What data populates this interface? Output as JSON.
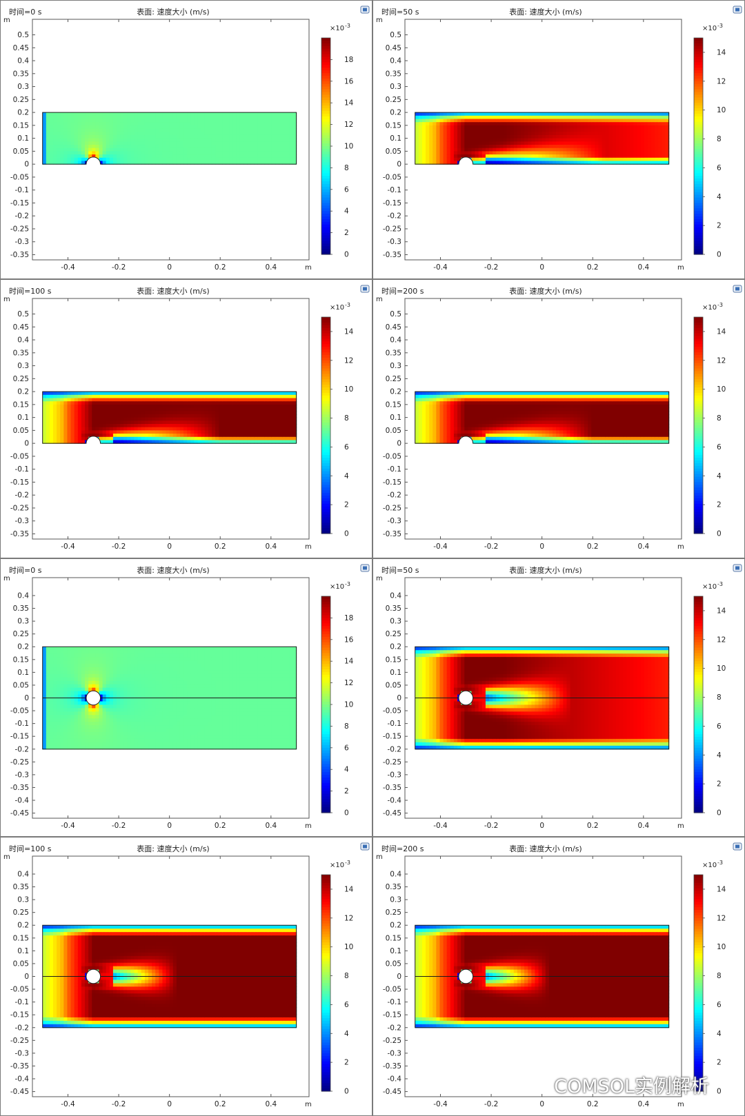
{
  "figure": {
    "watermark": "COMSOL实例解析",
    "colormap": "jet",
    "color_low": "#00007f",
    "color_high": "#7f0000",
    "mid_color": "#80ff80"
  },
  "chart_data": [
    {
      "type": "heatmap",
      "time_label": "时间=0 s",
      "title": "表面: 速度大小 (m/s)",
      "axis_unit": "m",
      "xticks": [
        -0.4,
        -0.2,
        0,
        0.2,
        0.4
      ],
      "yticks": [
        0.5,
        0.45,
        0.4,
        0.35,
        0.3,
        0.25,
        0.2,
        0.15,
        0.1,
        0.05,
        0,
        -0.05,
        -0.1,
        -0.15,
        -0.2,
        -0.25,
        -0.3,
        -0.35
      ],
      "xlim": [
        -0.54,
        0.55
      ],
      "ylim": [
        -0.37,
        0.56
      ],
      "domain": {
        "x": [
          -0.5,
          0.5
        ],
        "y": [
          0,
          0.2
        ]
      },
      "cylinder": {
        "cx": -0.3,
        "cy": 0,
        "r": 0.028
      },
      "flow": "initial",
      "colorbar": {
        "exponent": "×10",
        "sup": "-3",
        "min": 0,
        "max": 20,
        "ticks": [
          0,
          2,
          4,
          6,
          8,
          10,
          12,
          14,
          16,
          18
        ]
      }
    },
    {
      "type": "heatmap",
      "time_label": "时间=50 s",
      "title": "表面: 速度大小 (m/s)",
      "axis_unit": "m",
      "xticks": [
        -0.4,
        -0.2,
        0,
        0.2,
        0.4
      ],
      "yticks": [
        0.5,
        0.45,
        0.4,
        0.35,
        0.3,
        0.25,
        0.2,
        0.15,
        0.1,
        0.05,
        0,
        -0.05,
        -0.1,
        -0.15,
        -0.2,
        -0.25,
        -0.3,
        -0.35
      ],
      "xlim": [
        -0.54,
        0.55
      ],
      "ylim": [
        -0.37,
        0.56
      ],
      "domain": {
        "x": [
          -0.5,
          0.5
        ],
        "y": [
          0,
          0.2
        ]
      },
      "cylinder": {
        "cx": -0.3,
        "cy": 0,
        "r": 0.028
      },
      "flow": "developing",
      "colorbar": {
        "exponent": "×10",
        "sup": "-3",
        "min": 0,
        "max": 15,
        "ticks": [
          0,
          2,
          4,
          6,
          8,
          10,
          12,
          14
        ]
      }
    },
    {
      "type": "heatmap",
      "time_label": "时间=100 s",
      "title": "表面: 速度大小 (m/s)",
      "axis_unit": "m",
      "xticks": [
        -0.4,
        -0.2,
        0,
        0.2,
        0.4
      ],
      "yticks": [
        0.5,
        0.45,
        0.4,
        0.35,
        0.3,
        0.25,
        0.2,
        0.15,
        0.1,
        0.05,
        0,
        -0.05,
        -0.1,
        -0.15,
        -0.2,
        -0.25,
        -0.3,
        -0.35
      ],
      "xlim": [
        -0.54,
        0.55
      ],
      "ylim": [
        -0.37,
        0.56
      ],
      "domain": {
        "x": [
          -0.5,
          0.5
        ],
        "y": [
          0,
          0.2
        ]
      },
      "cylinder": {
        "cx": -0.3,
        "cy": 0,
        "r": 0.028
      },
      "flow": "developed",
      "colorbar": {
        "exponent": "×10",
        "sup": "-3",
        "min": 0,
        "max": 15,
        "ticks": [
          0,
          2,
          4,
          6,
          8,
          10,
          12,
          14
        ]
      }
    },
    {
      "type": "heatmap",
      "time_label": "时间=200 s",
      "title": "表面: 速度大小 (m/s)",
      "axis_unit": "m",
      "xticks": [
        -0.4,
        -0.2,
        0,
        0.2,
        0.4
      ],
      "yticks": [
        0.5,
        0.45,
        0.4,
        0.35,
        0.3,
        0.25,
        0.2,
        0.15,
        0.1,
        0.05,
        0,
        -0.05,
        -0.1,
        -0.15,
        -0.2,
        -0.25,
        -0.3,
        -0.35
      ],
      "xlim": [
        -0.54,
        0.55
      ],
      "ylim": [
        -0.37,
        0.56
      ],
      "domain": {
        "x": [
          -0.5,
          0.5
        ],
        "y": [
          0,
          0.2
        ]
      },
      "cylinder": {
        "cx": -0.3,
        "cy": 0,
        "r": 0.028
      },
      "flow": "developed",
      "colorbar": {
        "exponent": "×10",
        "sup": "-3",
        "min": 0,
        "max": 15,
        "ticks": [
          0,
          2,
          4,
          6,
          8,
          10,
          12,
          14
        ]
      }
    },
    {
      "type": "heatmap",
      "time_label": "时间=0 s",
      "title": "表面: 速度大小 (m/s)",
      "axis_unit": "m",
      "xticks": [
        -0.4,
        -0.2,
        0,
        0.2,
        0.4
      ],
      "yticks": [
        0.4,
        0.35,
        0.3,
        0.25,
        0.2,
        0.15,
        0.1,
        0.05,
        0,
        -0.05,
        -0.1,
        -0.15,
        -0.2,
        -0.25,
        -0.3,
        -0.35,
        -0.4,
        -0.45
      ],
      "xlim": [
        -0.54,
        0.55
      ],
      "ylim": [
        -0.47,
        0.47
      ],
      "domain": {
        "x": [
          -0.5,
          0.5
        ],
        "y": [
          -0.2,
          0.2
        ]
      },
      "cylinder": {
        "cx": -0.3,
        "cy": 0,
        "r": 0.028
      },
      "flow": "initial",
      "colorbar": {
        "exponent": "×10",
        "sup": "-3",
        "min": 0,
        "max": 20,
        "ticks": [
          0,
          2,
          4,
          6,
          8,
          10,
          12,
          14,
          16,
          18
        ]
      }
    },
    {
      "type": "heatmap",
      "time_label": "时间=50 s",
      "title": "表面: 速度大小 (m/s)",
      "axis_unit": "m",
      "xticks": [
        -0.4,
        -0.2,
        0,
        0.2,
        0.4
      ],
      "yticks": [
        0.4,
        0.35,
        0.3,
        0.25,
        0.2,
        0.15,
        0.1,
        0.05,
        0,
        -0.05,
        -0.1,
        -0.15,
        -0.2,
        -0.25,
        -0.3,
        -0.35,
        -0.4,
        -0.45
      ],
      "xlim": [
        -0.54,
        0.55
      ],
      "ylim": [
        -0.47,
        0.47
      ],
      "domain": {
        "x": [
          -0.5,
          0.5
        ],
        "y": [
          -0.2,
          0.2
        ]
      },
      "cylinder": {
        "cx": -0.3,
        "cy": 0,
        "r": 0.028
      },
      "flow": "developing",
      "colorbar": {
        "exponent": "×10",
        "sup": "-3",
        "min": 0,
        "max": 15,
        "ticks": [
          0,
          2,
          4,
          6,
          8,
          10,
          12,
          14
        ]
      }
    },
    {
      "type": "heatmap",
      "time_label": "时间=100 s",
      "title": "表面: 速度大小 (m/s)",
      "axis_unit": "m",
      "xticks": [
        -0.4,
        -0.2,
        0,
        0.2,
        0.4
      ],
      "yticks": [
        0.4,
        0.35,
        0.3,
        0.25,
        0.2,
        0.15,
        0.1,
        0.05,
        0,
        -0.05,
        -0.1,
        -0.15,
        -0.2,
        -0.25,
        -0.3,
        -0.35,
        -0.4,
        -0.45
      ],
      "xlim": [
        -0.54,
        0.55
      ],
      "ylim": [
        -0.47,
        0.47
      ],
      "domain": {
        "x": [
          -0.5,
          0.5
        ],
        "y": [
          -0.2,
          0.2
        ]
      },
      "cylinder": {
        "cx": -0.3,
        "cy": 0,
        "r": 0.028
      },
      "flow": "developed",
      "colorbar": {
        "exponent": "×10",
        "sup": "-3",
        "min": 0,
        "max": 15,
        "ticks": [
          0,
          2,
          4,
          6,
          8,
          10,
          12,
          14
        ]
      }
    },
    {
      "type": "heatmap",
      "time_label": "时间=200 s",
      "title": "表面: 速度大小 (m/s)",
      "axis_unit": "m",
      "xticks": [
        -0.4,
        -0.2,
        0,
        0.2,
        0.4
      ],
      "yticks": [
        0.4,
        0.35,
        0.3,
        0.25,
        0.2,
        0.15,
        0.1,
        0.05,
        0,
        -0.05,
        -0.1,
        -0.15,
        -0.2,
        -0.25,
        -0.3,
        -0.35,
        -0.4,
        -0.45
      ],
      "xlim": [
        -0.54,
        0.55
      ],
      "ylim": [
        -0.47,
        0.47
      ],
      "domain": {
        "x": [
          -0.5,
          0.5
        ],
        "y": [
          -0.2,
          0.2
        ]
      },
      "cylinder": {
        "cx": -0.3,
        "cy": 0,
        "r": 0.028
      },
      "flow": "developed",
      "colorbar": {
        "exponent": "×10",
        "sup": "-3",
        "min": 0,
        "max": 15,
        "ticks": [
          0,
          2,
          4,
          6,
          8,
          10,
          12,
          14
        ]
      }
    }
  ]
}
